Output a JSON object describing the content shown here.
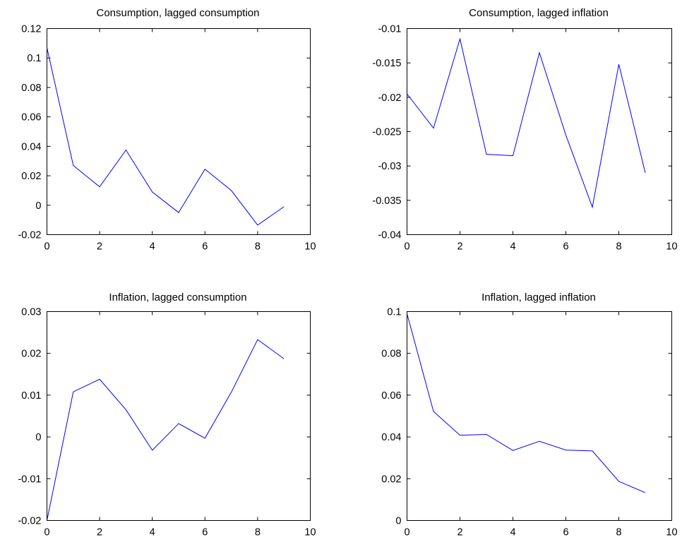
{
  "colors": {
    "line": "#0000ff",
    "axes": "#000000",
    "background": "#ffffff"
  },
  "chart_data": [
    {
      "type": "line",
      "title": "Consumption, lagged consumption",
      "xlabel": "",
      "ylabel": "",
      "xlim": [
        0,
        10
      ],
      "ylim": [
        -0.02,
        0.12
      ],
      "xticks": [
        0,
        2,
        4,
        6,
        8,
        10
      ],
      "yticks": [
        -0.02,
        0,
        0.02,
        0.04,
        0.06,
        0.08,
        0.1,
        0.12
      ],
      "xtick_labels": [
        "0",
        "2",
        "4",
        "6",
        "8",
        "10"
      ],
      "ytick_labels": [
        "-0.02",
        "0",
        "0.02",
        "0.04",
        "0.06",
        "0.08",
        "0.1",
        "0.12"
      ],
      "grid": false,
      "series": [
        {
          "x": [
            0,
            1,
            2,
            3,
            4,
            5,
            6,
            7,
            8,
            9
          ],
          "values": [
            0.107,
            0.027,
            0.0125,
            0.0375,
            0.009,
            -0.005,
            0.0245,
            0.01,
            -0.0135,
            -0.001
          ]
        }
      ]
    },
    {
      "type": "line",
      "title": "Consumption, lagged inflation",
      "xlabel": "",
      "ylabel": "",
      "xlim": [
        0,
        10
      ],
      "ylim": [
        -0.04,
        -0.01
      ],
      "xticks": [
        0,
        2,
        4,
        6,
        8,
        10
      ],
      "yticks": [
        -0.04,
        -0.035,
        -0.03,
        -0.025,
        -0.02,
        -0.015,
        -0.01
      ],
      "xtick_labels": [
        "0",
        "2",
        "4",
        "6",
        "8",
        "10"
      ],
      "ytick_labels": [
        "-0.04",
        "-0.035",
        "-0.03",
        "-0.025",
        "-0.02",
        "-0.015",
        "-0.01"
      ],
      "grid": false,
      "series": [
        {
          "x": [
            0,
            1,
            2,
            3,
            4,
            5,
            6,
            7,
            8,
            9
          ],
          "values": [
            -0.0195,
            -0.0245,
            -0.0115,
            -0.0283,
            -0.0285,
            -0.0135,
            -0.0255,
            -0.036,
            -0.0152,
            -0.031
          ]
        }
      ]
    },
    {
      "type": "line",
      "title": "Inflation, lagged consumption",
      "xlabel": "",
      "ylabel": "",
      "xlim": [
        0,
        10
      ],
      "ylim": [
        -0.02,
        0.03
      ],
      "xticks": [
        0,
        2,
        4,
        6,
        8,
        10
      ],
      "yticks": [
        -0.02,
        -0.01,
        0,
        0.01,
        0.02,
        0.03
      ],
      "xtick_labels": [
        "0",
        "2",
        "4",
        "6",
        "8",
        "10"
      ],
      "ytick_labels": [
        "-0.02",
        "-0.01",
        "0",
        "0.01",
        "0.02",
        "0.03"
      ],
      "grid": false,
      "series": [
        {
          "x": [
            0,
            1,
            2,
            3,
            4,
            5,
            6,
            7,
            8,
            9
          ],
          "values": [
            -0.02,
            0.0108,
            0.0138,
            0.0065,
            -0.0032,
            0.0032,
            -0.0003,
            0.0107,
            0.0233,
            0.0187
          ]
        }
      ]
    },
    {
      "type": "line",
      "title": "Inflation, lagged inflation",
      "xlabel": "",
      "ylabel": "",
      "xlim": [
        0,
        10
      ],
      "ylim": [
        0,
        0.1
      ],
      "xticks": [
        0,
        2,
        4,
        6,
        8,
        10
      ],
      "yticks": [
        0,
        0.02,
        0.04,
        0.06,
        0.08,
        0.1
      ],
      "xtick_labels": [
        "0",
        "2",
        "4",
        "6",
        "8",
        "10"
      ],
      "ytick_labels": [
        "0",
        "0.02",
        "0.04",
        "0.06",
        "0.08",
        "0.1"
      ],
      "grid": false,
      "series": [
        {
          "x": [
            0,
            1,
            2,
            3,
            4,
            5,
            6,
            7,
            8,
            9
          ],
          "values": [
            0.099,
            0.0522,
            0.0408,
            0.0412,
            0.0335,
            0.0379,
            0.0337,
            0.0333,
            0.0187,
            0.0133
          ]
        }
      ]
    }
  ]
}
